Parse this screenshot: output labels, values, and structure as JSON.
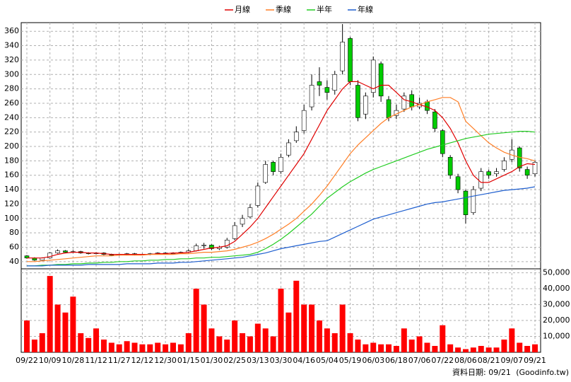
{
  "chart_data": {
    "type": "candlestick",
    "categories": [
      "09/22",
      null,
      null,
      "10/09",
      null,
      null,
      "10/28",
      null,
      null,
      "11/12",
      null,
      null,
      "11/27",
      null,
      null,
      "12/12",
      null,
      null,
      "12/30",
      null,
      null,
      "01/15",
      null,
      null,
      "01/30",
      null,
      null,
      "02/25",
      null,
      null,
      "03/13",
      null,
      null,
      "03/30",
      null,
      null,
      "04/16",
      null,
      null,
      "05/04",
      null,
      null,
      "05/19",
      null,
      null,
      "06/03",
      null,
      null,
      "06/18",
      null,
      null,
      "07/06",
      null,
      null,
      "07/22",
      null,
      null,
      "08/06",
      null,
      null,
      "08/21",
      null,
      null,
      "09/07",
      null,
      null,
      "09/21"
    ],
    "ohlc": {
      "up_color": "#ffffff",
      "down_color": "#00cc00",
      "outline": "#000000",
      "open": [
        48,
        45,
        42,
        45,
        52,
        55,
        53,
        54,
        52,
        51,
        52,
        50,
        49,
        50,
        51,
        50,
        50,
        51,
        52,
        52,
        52,
        53,
        55,
        62,
        63,
        58,
        60,
        72,
        92,
        102,
        118,
        150,
        178,
        165,
        188,
        208,
        222,
        255,
        290,
        282,
        278,
        305,
        350,
        285,
        245,
        275,
        315,
        265,
        243,
        252,
        272,
        255,
        262,
        248,
        222,
        185,
        158,
        138,
        108,
        142,
        165,
        162,
        168,
        182,
        198,
        168,
        162
      ],
      "high": [
        49,
        46,
        46,
        53,
        57,
        56,
        56,
        55,
        53,
        53,
        53,
        51,
        51,
        52,
        52,
        51,
        52,
        53,
        53,
        53,
        54,
        57,
        65,
        66,
        64,
        62,
        73,
        95,
        105,
        120,
        150,
        180,
        180,
        190,
        210,
        228,
        258,
        300,
        310,
        292,
        305,
        370,
        352,
        292,
        275,
        325,
        318,
        270,
        258,
        275,
        278,
        268,
        265,
        252,
        224,
        188,
        162,
        140,
        145,
        170,
        168,
        170,
        185,
        210,
        200,
        172,
        180
      ],
      "low": [
        44,
        41,
        41,
        44,
        51,
        52,
        52,
        51,
        50,
        50,
        49,
        48,
        48,
        49,
        49,
        49,
        49,
        50,
        51,
        51,
        51,
        52,
        54,
        58,
        56,
        56,
        58,
        70,
        88,
        100,
        115,
        148,
        160,
        162,
        185,
        205,
        218,
        250,
        270,
        265,
        272,
        300,
        285,
        235,
        238,
        268,
        262,
        235,
        238,
        248,
        250,
        252,
        245,
        220,
        185,
        155,
        135,
        93,
        105,
        138,
        155,
        158,
        165,
        178,
        165,
        155,
        158
      ],
      "close": [
        45,
        42,
        45,
        52,
        55,
        53,
        54,
        52,
        51,
        52,
        50,
        49,
        50,
        51,
        50,
        50,
        51,
        52,
        52,
        52,
        53,
        55,
        62,
        63,
        58,
        60,
        70,
        90,
        100,
        115,
        145,
        175,
        165,
        185,
        205,
        220,
        250,
        285,
        285,
        275,
        300,
        345,
        290,
        240,
        270,
        320,
        270,
        240,
        250,
        270,
        255,
        260,
        250,
        225,
        190,
        160,
        140,
        105,
        140,
        165,
        160,
        165,
        180,
        195,
        170,
        160,
        178
      ]
    },
    "series": [
      {
        "name": "月線",
        "color": "#e00000",
        "values": [
          45,
          45,
          45,
          47,
          50,
          52,
          53,
          53,
          52,
          52,
          51,
          50,
          50,
          50,
          50,
          50,
          50,
          51,
          51,
          52,
          52,
          53,
          55,
          57,
          59,
          60,
          62,
          68,
          78,
          88,
          100,
          115,
          130,
          145,
          160,
          175,
          190,
          210,
          230,
          250,
          265,
          280,
          290,
          290,
          285,
          280,
          285,
          285,
          275,
          265,
          262,
          258,
          255,
          250,
          240,
          225,
          205,
          180,
          160,
          150,
          150,
          155,
          160,
          165,
          172,
          176,
          175
        ]
      },
      {
        "name": "季線",
        "color": "#ff7f27",
        "values": [
          40,
          40,
          41,
          42,
          43,
          44,
          45,
          46,
          47,
          48,
          48,
          48,
          49,
          49,
          49,
          49,
          50,
          50,
          50,
          50,
          51,
          51,
          52,
          53,
          53,
          54,
          55,
          57,
          60,
          63,
          67,
          72,
          78,
          85,
          92,
          100,
          110,
          120,
          132,
          145,
          160,
          175,
          190,
          202,
          212,
          222,
          232,
          240,
          245,
          250,
          255,
          258,
          262,
          265,
          268,
          268,
          262,
          235,
          225,
          215,
          205,
          198,
          192,
          188,
          185,
          183,
          180
        ]
      },
      {
        "name": "半年",
        "color": "#22cc22",
        "values": [
          34,
          34,
          35,
          35,
          36,
          36,
          37,
          37,
          38,
          38,
          39,
          39,
          40,
          40,
          41,
          41,
          42,
          42,
          43,
          43,
          44,
          44,
          45,
          45,
          46,
          46,
          47,
          48,
          49,
          50,
          53,
          58,
          64,
          71,
          79,
          88,
          97,
          106,
          117,
          128,
          136,
          144,
          151,
          157,
          163,
          168,
          172,
          176,
          180,
          184,
          188,
          192,
          196,
          199,
          202,
          205,
          208,
          211,
          213,
          215,
          217,
          218,
          219,
          220,
          221,
          221,
          220
        ]
      },
      {
        "name": "年線",
        "color": "#1f5fcf",
        "values": [
          34,
          34,
          34,
          35,
          35,
          35,
          35,
          35,
          36,
          36,
          36,
          36,
          36,
          37,
          37,
          37,
          37,
          38,
          38,
          38,
          39,
          39,
          40,
          41,
          42,
          43,
          44,
          45,
          46,
          48,
          50,
          52,
          55,
          58,
          60,
          62,
          64,
          66,
          68,
          69,
          74,
          79,
          84,
          89,
          94,
          99,
          102,
          105,
          108,
          111,
          114,
          117,
          120,
          122,
          123,
          125,
          127,
          129,
          131,
          133,
          135,
          137,
          139,
          140,
          141,
          142,
          144
        ]
      }
    ],
    "ylim": [
      30,
      372
    ],
    "yticks": [
      40,
      60,
      80,
      100,
      120,
      140,
      160,
      180,
      200,
      220,
      240,
      260,
      280,
      300,
      320,
      340,
      360
    ],
    "grid": true,
    "volume": {
      "color": "#ff0000",
      "ylim": [
        0,
        52500
      ],
      "yticks": [
        {
          "value": 10000,
          "label": "10,000"
        },
        {
          "value": 20000,
          "label": "20,000"
        },
        {
          "value": 30000,
          "label": "30,000"
        },
        {
          "value": 40000,
          "label": "40,000"
        },
        {
          "value": 50000,
          "label": "50,000"
        }
      ],
      "values": [
        20000,
        8000,
        12000,
        48000,
        30000,
        25000,
        35000,
        12000,
        9000,
        15000,
        8000,
        6000,
        5000,
        7000,
        6000,
        5000,
        5000,
        6000,
        5000,
        6000,
        5000,
        12000,
        40000,
        30000,
        15000,
        10000,
        8000,
        20000,
        12000,
        10000,
        18000,
        15000,
        10000,
        40000,
        25000,
        45000,
        30000,
        30000,
        20000,
        15000,
        12000,
        30000,
        12000,
        8000,
        5000,
        6000,
        5000,
        5000,
        4000,
        15000,
        8000,
        10000,
        6000,
        4000,
        17000,
        5000,
        3000,
        2000,
        3000,
        4000,
        3000,
        3000,
        8000,
        15000,
        6000,
        4000,
        5000
      ]
    },
    "footnote": "資料日期: 09/21",
    "source": "(Goodinfo.tw)"
  }
}
